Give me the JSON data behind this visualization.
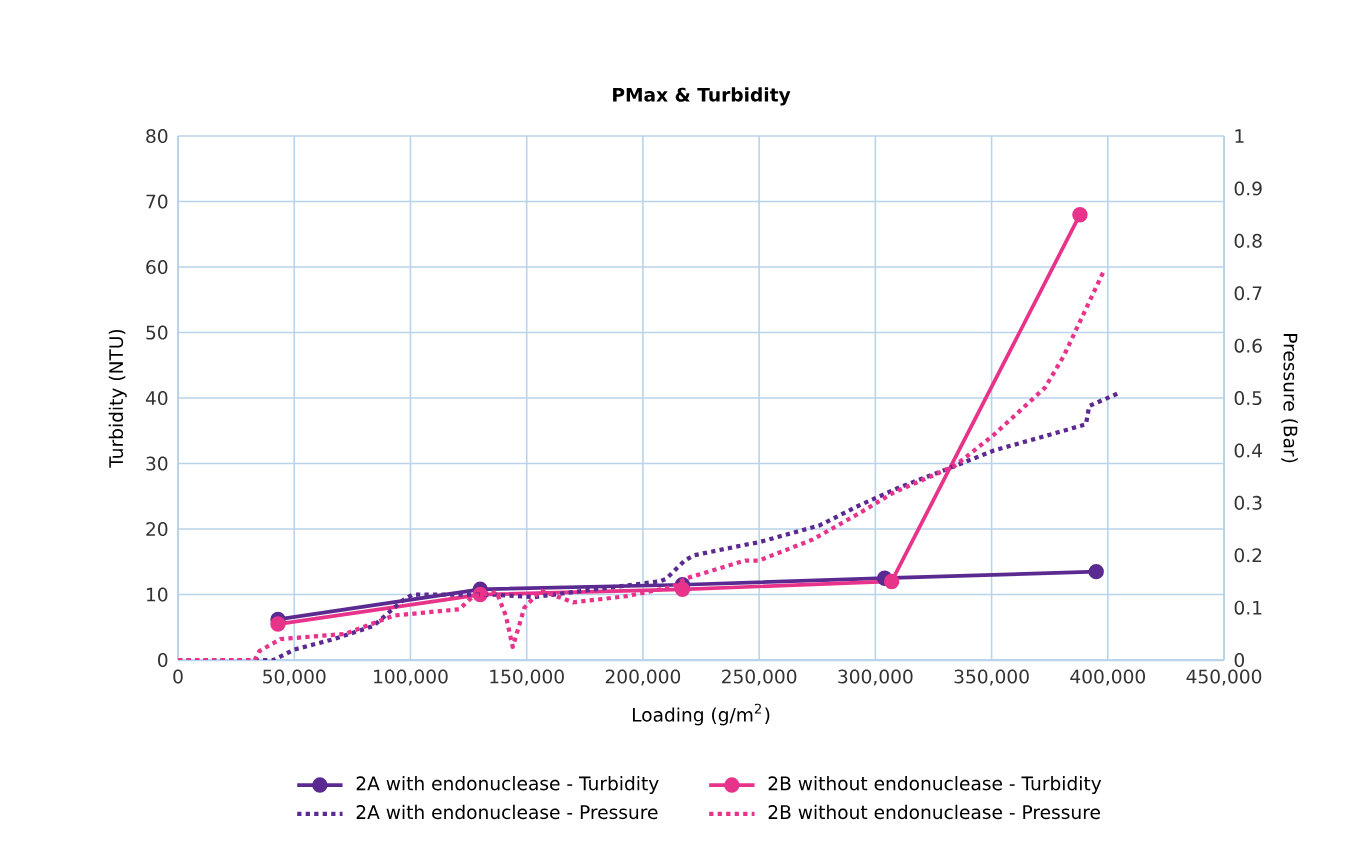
{
  "chart_data": {
    "type": "line",
    "title": "PMax & Turbidity",
    "xlabel": "Loading (g/m$^{2}$)",
    "ylabel": "Turbidity (NTU)",
    "y2label": "Pressure (Bar)",
    "xlim": [
      0,
      450000
    ],
    "xticks": [
      {
        "value": 0,
        "label": "0"
      },
      {
        "value": 50000,
        "label": "50,000"
      },
      {
        "value": 100000,
        "label": "100,000"
      },
      {
        "value": 150000,
        "label": "150,000"
      },
      {
        "value": 200000,
        "label": "200,000"
      },
      {
        "value": 250000,
        "label": "250,000"
      },
      {
        "value": 300000,
        "label": "300,000"
      },
      {
        "value": 350000,
        "label": "350,000"
      },
      {
        "value": 400000,
        "label": "400,000"
      },
      {
        "value": 450000,
        "label": "450,000"
      }
    ],
    "ylim": [
      0,
      80
    ],
    "yticks": [
      0,
      10,
      20,
      30,
      40,
      50,
      60,
      70,
      80
    ],
    "y2lim": [
      0,
      1
    ],
    "y2ticks": [
      0,
      0.1,
      0.2,
      0.3,
      0.4,
      0.5,
      0.6,
      0.7,
      0.8,
      0.9,
      1
    ],
    "grid": true,
    "legend": "bottom",
    "series": [
      {
        "name": "2A with endonuclease - Turbidity",
        "color": "#5b2a91",
        "marker": "circle",
        "line_style": "solid",
        "x": [
          43000,
          130000,
          217000,
          304000,
          395000
        ],
        "values": [
          6.2,
          10.8,
          11.5,
          12.5,
          13.5
        ]
      },
      {
        "name": "2B without endonuclease - Turbidity",
        "color": "#e8338b",
        "marker": "circle",
        "line_style": "solid",
        "x": [
          43000,
          130000,
          217000,
          307000,
          388000
        ],
        "values": [
          5.5,
          10,
          10.8,
          12,
          68
        ]
      },
      {
        "name": "2A with endonuclease - Pressure",
        "color": "#5b2a91",
        "marker": "none",
        "line_style": "dotted",
        "axis": "y2",
        "x": [
          0,
          41000,
          50000,
          67000,
          84000,
          97000,
          101000,
          136000,
          153000,
          179000,
          207000,
          210000,
          218000,
          222000,
          244000,
          250000,
          276000,
          293000,
          310600,
          334000,
          351000,
          375000,
          390600,
          392000,
          405000
        ],
        "values": [
          0,
          0,
          0.02,
          0.04,
          0.065,
          0.115,
          0.125,
          0.125,
          0.12,
          0.135,
          0.15,
          0.155,
          0.19,
          0.2,
          0.22,
          0.225,
          0.257,
          0.295,
          0.33,
          0.37,
          0.4,
          0.43,
          0.45,
          0.485,
          0.51
        ]
      },
      {
        "name": "2B without endonuclease - Pressure",
        "color": "#e8338b",
        "marker": "none",
        "line_style": "dotted",
        "axis": "y2",
        "x": [
          0,
          33000,
          35000,
          44000,
          72000,
          93000,
          121000,
          127000,
          137000,
          141000,
          144000,
          149000,
          156000,
          170000,
          193000,
          213000,
          218000,
          244000,
          250000,
          273000,
          293000,
          308000,
          334000,
          351000,
          373000,
          381000,
          398000
        ],
        "values": [
          0,
          0,
          0.017,
          0.04,
          0.05,
          0.085,
          0.097,
          0.122,
          0.13,
          0.085,
          0.025,
          0.1,
          0.133,
          0.11,
          0.122,
          0.14,
          0.155,
          0.19,
          0.19,
          0.23,
          0.28,
          0.32,
          0.37,
          0.43,
          0.52,
          0.58,
          0.74
        ]
      }
    ]
  }
}
